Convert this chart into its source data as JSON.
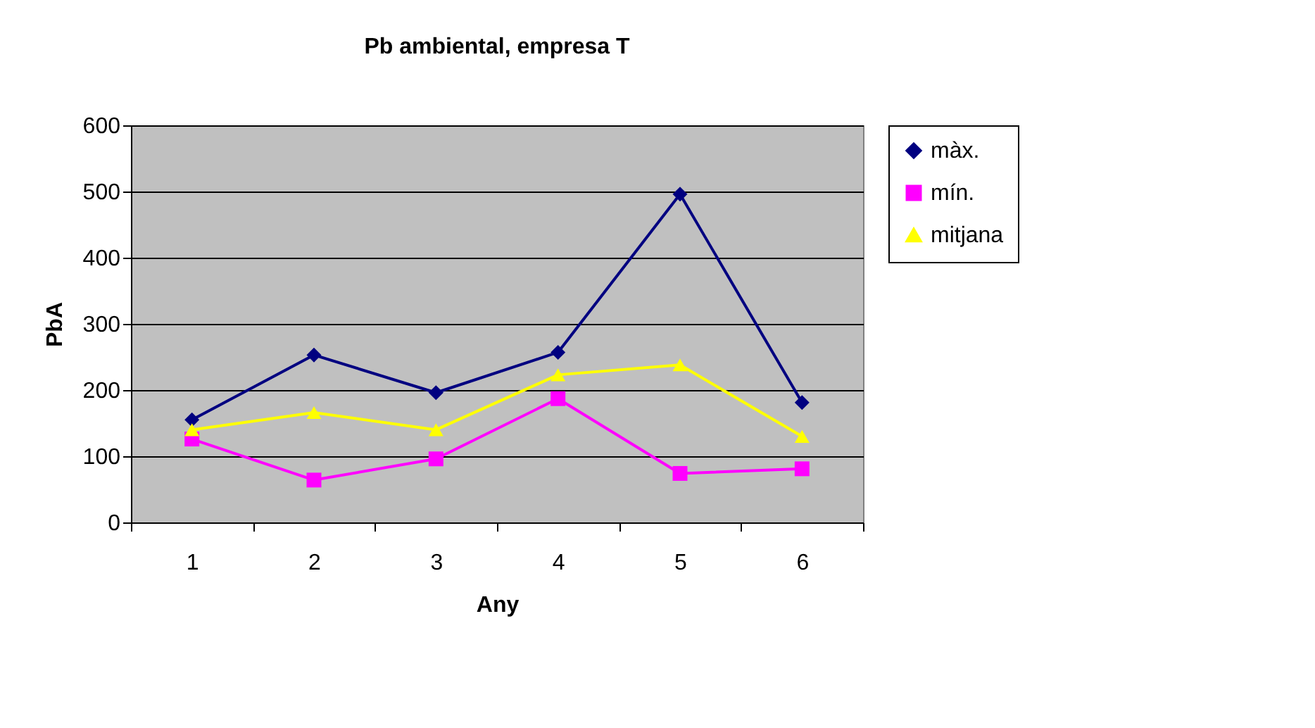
{
  "chart_data": {
    "type": "line",
    "title": "Pb ambiental, empresa T",
    "xlabel": "Any",
    "ylabel": "PbA",
    "categories": [
      "1",
      "2",
      "3",
      "4",
      "5",
      "6"
    ],
    "series": [
      {
        "name": "màx.",
        "color": "#000080",
        "marker": "diamond",
        "values": [
          155,
          253,
          196,
          257,
          496,
          181
        ]
      },
      {
        "name": "mín.",
        "color": "#ff00ff",
        "marker": "square",
        "values": [
          126,
          64,
          96,
          187,
          74,
          81
        ]
      },
      {
        "name": "mitjana",
        "color": "#ffff00",
        "marker": "triangle",
        "values": [
          140,
          166,
          140,
          223,
          238,
          130
        ]
      }
    ],
    "ylim": [
      0,
      600
    ],
    "yticks": [
      0,
      100,
      200,
      300,
      400,
      500,
      600
    ],
    "grid": "y",
    "legend": "right"
  }
}
